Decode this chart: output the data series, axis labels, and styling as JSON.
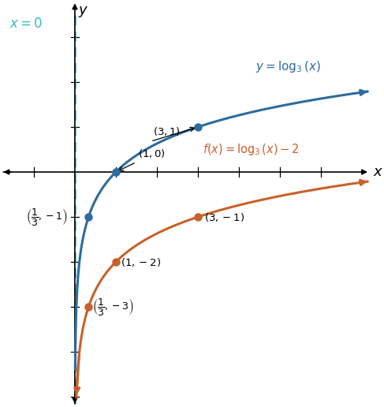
{
  "xlim": [
    -1.8,
    7.2
  ],
  "ylim": [
    -5.2,
    3.8
  ],
  "blue_color": "#2E6B9E",
  "orange_color": "#C8612A",
  "cyan_color": "#3ABCB8",
  "asymptote_label": "x = 0",
  "blue_label": "y = log$_3$(x)",
  "orange_label": "f(x) = log$_3$(x) − 2",
  "blue_points": [
    [
      0.3333,
      -1
    ],
    [
      1,
      0
    ],
    [
      3,
      1
    ]
  ],
  "orange_points": [
    [
      0.3333,
      -3
    ],
    [
      1,
      -2
    ],
    [
      3,
      -1
    ]
  ],
  "figsize": [
    4.87,
    5.16
  ],
  "dpi": 100
}
